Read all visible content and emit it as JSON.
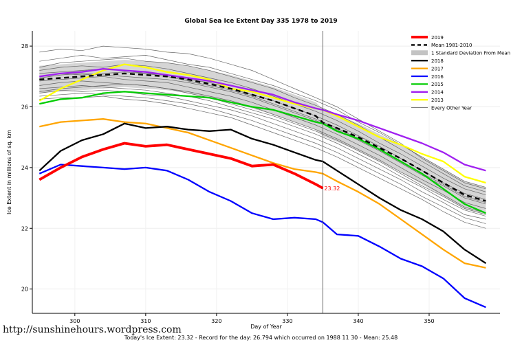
{
  "page": {
    "footer_url": "http://sunshinehours.wordpress.com",
    "caption": "Today's Ice Extent: 23.32 - Record for the day: 26.794 which occurred on 1988 11 30 - Mean: 25.48"
  },
  "chart_data": {
    "type": "line",
    "title": "Global Sea Ice Extent Day 335 1978 to 2019",
    "xlabel": "Day of Year",
    "ylabel": "Ice Extent in millions of sq. km",
    "xlim": [
      294,
      360
    ],
    "ylim": [
      19.2,
      28.5
    ],
    "xticks": [
      300,
      310,
      320,
      330,
      340,
      350
    ],
    "yticks": [
      20,
      22,
      24,
      26,
      28
    ],
    "grid": true,
    "legend_position": "top-right",
    "marker_day": 335,
    "marker_color": "#555555",
    "annotation": {
      "text": "23.32",
      "x": 335,
      "y": 23.32,
      "color": "#FF0000"
    },
    "x": [
      295,
      298,
      301,
      304,
      307,
      310,
      313,
      316,
      319,
      322,
      325,
      328,
      331,
      334,
      335,
      337,
      340,
      343,
      346,
      349,
      352,
      355,
      358
    ],
    "mean_series": {
      "name": "Mean 1981-2010",
      "color": "#000000",
      "width": 2.4,
      "dash": "7,5",
      "values": [
        26.9,
        26.95,
        27.0,
        27.05,
        27.1,
        27.05,
        27.0,
        26.9,
        26.75,
        26.6,
        26.4,
        26.2,
        25.95,
        25.7,
        25.48,
        25.3,
        25.0,
        24.65,
        24.3,
        23.9,
        23.5,
        23.1,
        22.9
      ]
    },
    "band": {
      "name": "1 Standard Deviation From Mean",
      "sd": 0.45,
      "color": "#c3c3c3",
      "opacity": 0.7
    },
    "series": [
      {
        "name": "2013",
        "color": "#FFFF00",
        "width": 2.3,
        "values": [
          26.2,
          26.6,
          26.9,
          27.2,
          27.4,
          27.3,
          27.15,
          27.05,
          26.9,
          26.6,
          26.5,
          26.3,
          26.1,
          25.95,
          25.9,
          25.7,
          25.35,
          25.0,
          24.75,
          24.45,
          24.2,
          23.7,
          23.5
        ]
      },
      {
        "name": "2014",
        "color": "#A020F0",
        "width": 2.3,
        "values": [
          27.0,
          27.1,
          27.15,
          27.25,
          27.2,
          27.15,
          27.05,
          26.95,
          26.85,
          26.7,
          26.55,
          26.4,
          26.15,
          25.95,
          25.9,
          25.75,
          25.55,
          25.3,
          25.05,
          24.8,
          24.5,
          24.1,
          23.9
        ]
      },
      {
        "name": "2015",
        "color": "#00CC00",
        "width": 2.3,
        "values": [
          26.1,
          26.25,
          26.3,
          26.45,
          26.5,
          26.45,
          26.4,
          26.35,
          26.3,
          26.15,
          26.0,
          25.9,
          25.7,
          25.5,
          25.45,
          25.2,
          24.95,
          24.6,
          24.2,
          23.8,
          23.3,
          22.8,
          22.5
        ]
      },
      {
        "name": "2016",
        "color": "#0000FF",
        "width": 2.3,
        "values": [
          23.8,
          24.1,
          24.05,
          24.0,
          23.95,
          24.0,
          23.9,
          23.6,
          23.2,
          22.9,
          22.5,
          22.3,
          22.35,
          22.3,
          22.2,
          21.8,
          21.75,
          21.4,
          21.0,
          20.75,
          20.35,
          19.7,
          19.4
        ]
      },
      {
        "name": "2017",
        "color": "#FFA500",
        "width": 2.3,
        "values": [
          25.35,
          25.5,
          25.55,
          25.6,
          25.5,
          25.45,
          25.3,
          25.15,
          24.9,
          24.65,
          24.4,
          24.15,
          23.95,
          23.85,
          23.8,
          23.55,
          23.2,
          22.8,
          22.3,
          21.8,
          21.3,
          20.85,
          20.7
        ]
      },
      {
        "name": "2018",
        "color": "#000000",
        "width": 2.3,
        "values": [
          23.9,
          24.55,
          24.9,
          25.1,
          25.45,
          25.3,
          25.35,
          25.25,
          25.2,
          25.25,
          24.95,
          24.75,
          24.5,
          24.25,
          24.2,
          23.9,
          23.45,
          23.0,
          22.6,
          22.3,
          21.9,
          21.3,
          20.85
        ]
      }
    ],
    "current_year": {
      "name": "2019",
      "color": "#FF0000",
      "width": 3.8,
      "values": [
        23.6,
        24.0,
        24.35,
        24.6,
        24.8,
        24.7,
        24.75,
        24.6,
        24.45,
        24.3,
        24.05,
        24.1,
        23.8,
        23.45,
        23.32,
        null,
        null,
        null,
        null,
        null,
        null,
        null,
        null
      ]
    },
    "other_years": {
      "name": "Every Other Year",
      "color": "#555555",
      "width": 0.7,
      "lines": [
        [
          27.8,
          27.9,
          27.85,
          28.0,
          27.95,
          27.9,
          27.8,
          27.75,
          27.6,
          27.4,
          27.2,
          26.9,
          26.6,
          26.3,
          26.2,
          26.0,
          25.6,
          25.2,
          24.8,
          24.3,
          23.9,
          23.5,
          23.3
        ],
        [
          27.5,
          27.6,
          27.7,
          27.6,
          27.65,
          27.7,
          27.55,
          27.4,
          27.3,
          27.1,
          26.9,
          26.7,
          26.45,
          26.2,
          26.1,
          25.9,
          25.5,
          25.15,
          24.75,
          24.35,
          23.95,
          23.55,
          23.35
        ],
        [
          27.3,
          27.45,
          27.5,
          27.55,
          27.6,
          27.5,
          27.45,
          27.35,
          27.2,
          27.0,
          26.8,
          26.6,
          26.3,
          26.05,
          25.95,
          25.75,
          25.4,
          25.0,
          24.6,
          24.2,
          23.8,
          23.4,
          23.2
        ],
        [
          27.2,
          27.3,
          27.35,
          27.3,
          27.4,
          27.35,
          27.25,
          27.1,
          26.95,
          26.8,
          26.6,
          26.35,
          26.1,
          25.85,
          25.75,
          25.55,
          25.2,
          24.8,
          24.45,
          24.05,
          23.65,
          23.3,
          23.1
        ],
        [
          27.1,
          27.15,
          27.2,
          27.25,
          27.2,
          27.1,
          27.05,
          26.9,
          26.8,
          26.6,
          26.4,
          26.2,
          25.95,
          25.7,
          25.6,
          25.4,
          25.05,
          24.7,
          24.3,
          23.9,
          23.5,
          23.15,
          22.95
        ],
        [
          26.95,
          27.05,
          27.1,
          27.05,
          27.0,
          26.95,
          26.9,
          26.8,
          26.65,
          26.5,
          26.3,
          26.05,
          25.8,
          25.55,
          25.45,
          25.25,
          24.9,
          24.55,
          24.15,
          23.75,
          23.4,
          23.0,
          22.8
        ],
        [
          26.85,
          26.9,
          26.95,
          27.0,
          26.9,
          26.85,
          26.8,
          26.65,
          26.5,
          26.35,
          26.15,
          25.9,
          25.65,
          25.4,
          25.3,
          25.1,
          24.75,
          24.4,
          24.0,
          23.6,
          23.25,
          22.85,
          22.65
        ],
        [
          26.7,
          26.8,
          26.85,
          26.8,
          26.75,
          26.7,
          26.6,
          26.5,
          26.35,
          26.2,
          26.0,
          25.75,
          25.5,
          25.25,
          25.15,
          24.95,
          24.6,
          24.25,
          23.85,
          23.5,
          23.1,
          22.7,
          22.5
        ],
        [
          26.6,
          26.65,
          26.7,
          26.65,
          26.6,
          26.55,
          26.45,
          26.35,
          26.2,
          26.0,
          25.8,
          25.6,
          25.35,
          25.1,
          25.0,
          24.8,
          24.45,
          24.1,
          23.7,
          23.35,
          22.95,
          22.6,
          22.4
        ],
        [
          26.45,
          26.55,
          26.5,
          26.55,
          26.5,
          26.4,
          26.35,
          26.2,
          26.05,
          25.9,
          25.7,
          25.45,
          25.2,
          24.95,
          24.85,
          24.65,
          24.3,
          23.95,
          23.6,
          23.2,
          22.85,
          22.45,
          22.3
        ],
        [
          26.35,
          26.4,
          26.45,
          26.4,
          26.35,
          26.3,
          26.2,
          26.1,
          25.95,
          25.75,
          25.55,
          25.3,
          25.05,
          24.8,
          24.7,
          24.5,
          24.15,
          23.8,
          23.45,
          23.05,
          22.7,
          22.35,
          22.15
        ],
        [
          26.25,
          26.3,
          26.3,
          26.35,
          26.25,
          26.2,
          26.1,
          25.95,
          25.8,
          25.65,
          25.4,
          25.15,
          24.9,
          24.65,
          24.55,
          24.35,
          24.0,
          23.65,
          23.3,
          22.95,
          22.55,
          22.2,
          22.0
        ],
        [
          26.5,
          26.6,
          26.65,
          26.7,
          26.75,
          26.7,
          26.6,
          26.45,
          26.3,
          26.1,
          25.9,
          25.7,
          25.45,
          25.2,
          25.1,
          24.9,
          24.55,
          24.2,
          23.8,
          23.4,
          23.05,
          22.65,
          22.45
        ],
        [
          27.0,
          27.1,
          27.05,
          27.1,
          27.15,
          27.1,
          27.0,
          26.85,
          26.7,
          26.55,
          26.35,
          26.1,
          25.85,
          25.6,
          25.5,
          25.3,
          24.95,
          24.6,
          24.2,
          23.8,
          23.45,
          23.05,
          22.85
        ]
      ]
    },
    "legend": [
      {
        "label": "2019",
        "color": "#FF0000",
        "width": 3.8
      },
      {
        "label": "Mean 1981-2010",
        "color": "#000000",
        "width": 2.4,
        "dash": "5,4"
      },
      {
        "label": "1 Standard Deviation From Mean",
        "color": "#c3c3c3",
        "width": 7
      },
      {
        "label": "2018",
        "color": "#000000",
        "width": 2.3
      },
      {
        "label": "2017",
        "color": "#FFA500",
        "width": 2.3
      },
      {
        "label": "2016",
        "color": "#0000FF",
        "width": 2.3
      },
      {
        "label": "2015",
        "color": "#00CC00",
        "width": 2.3
      },
      {
        "label": "2014",
        "color": "#A020F0",
        "width": 2.3
      },
      {
        "label": "2013",
        "color": "#FFFF00",
        "width": 2.3
      },
      {
        "label": "Every Other Year",
        "color": "#555555",
        "width": 0.7
      }
    ]
  }
}
